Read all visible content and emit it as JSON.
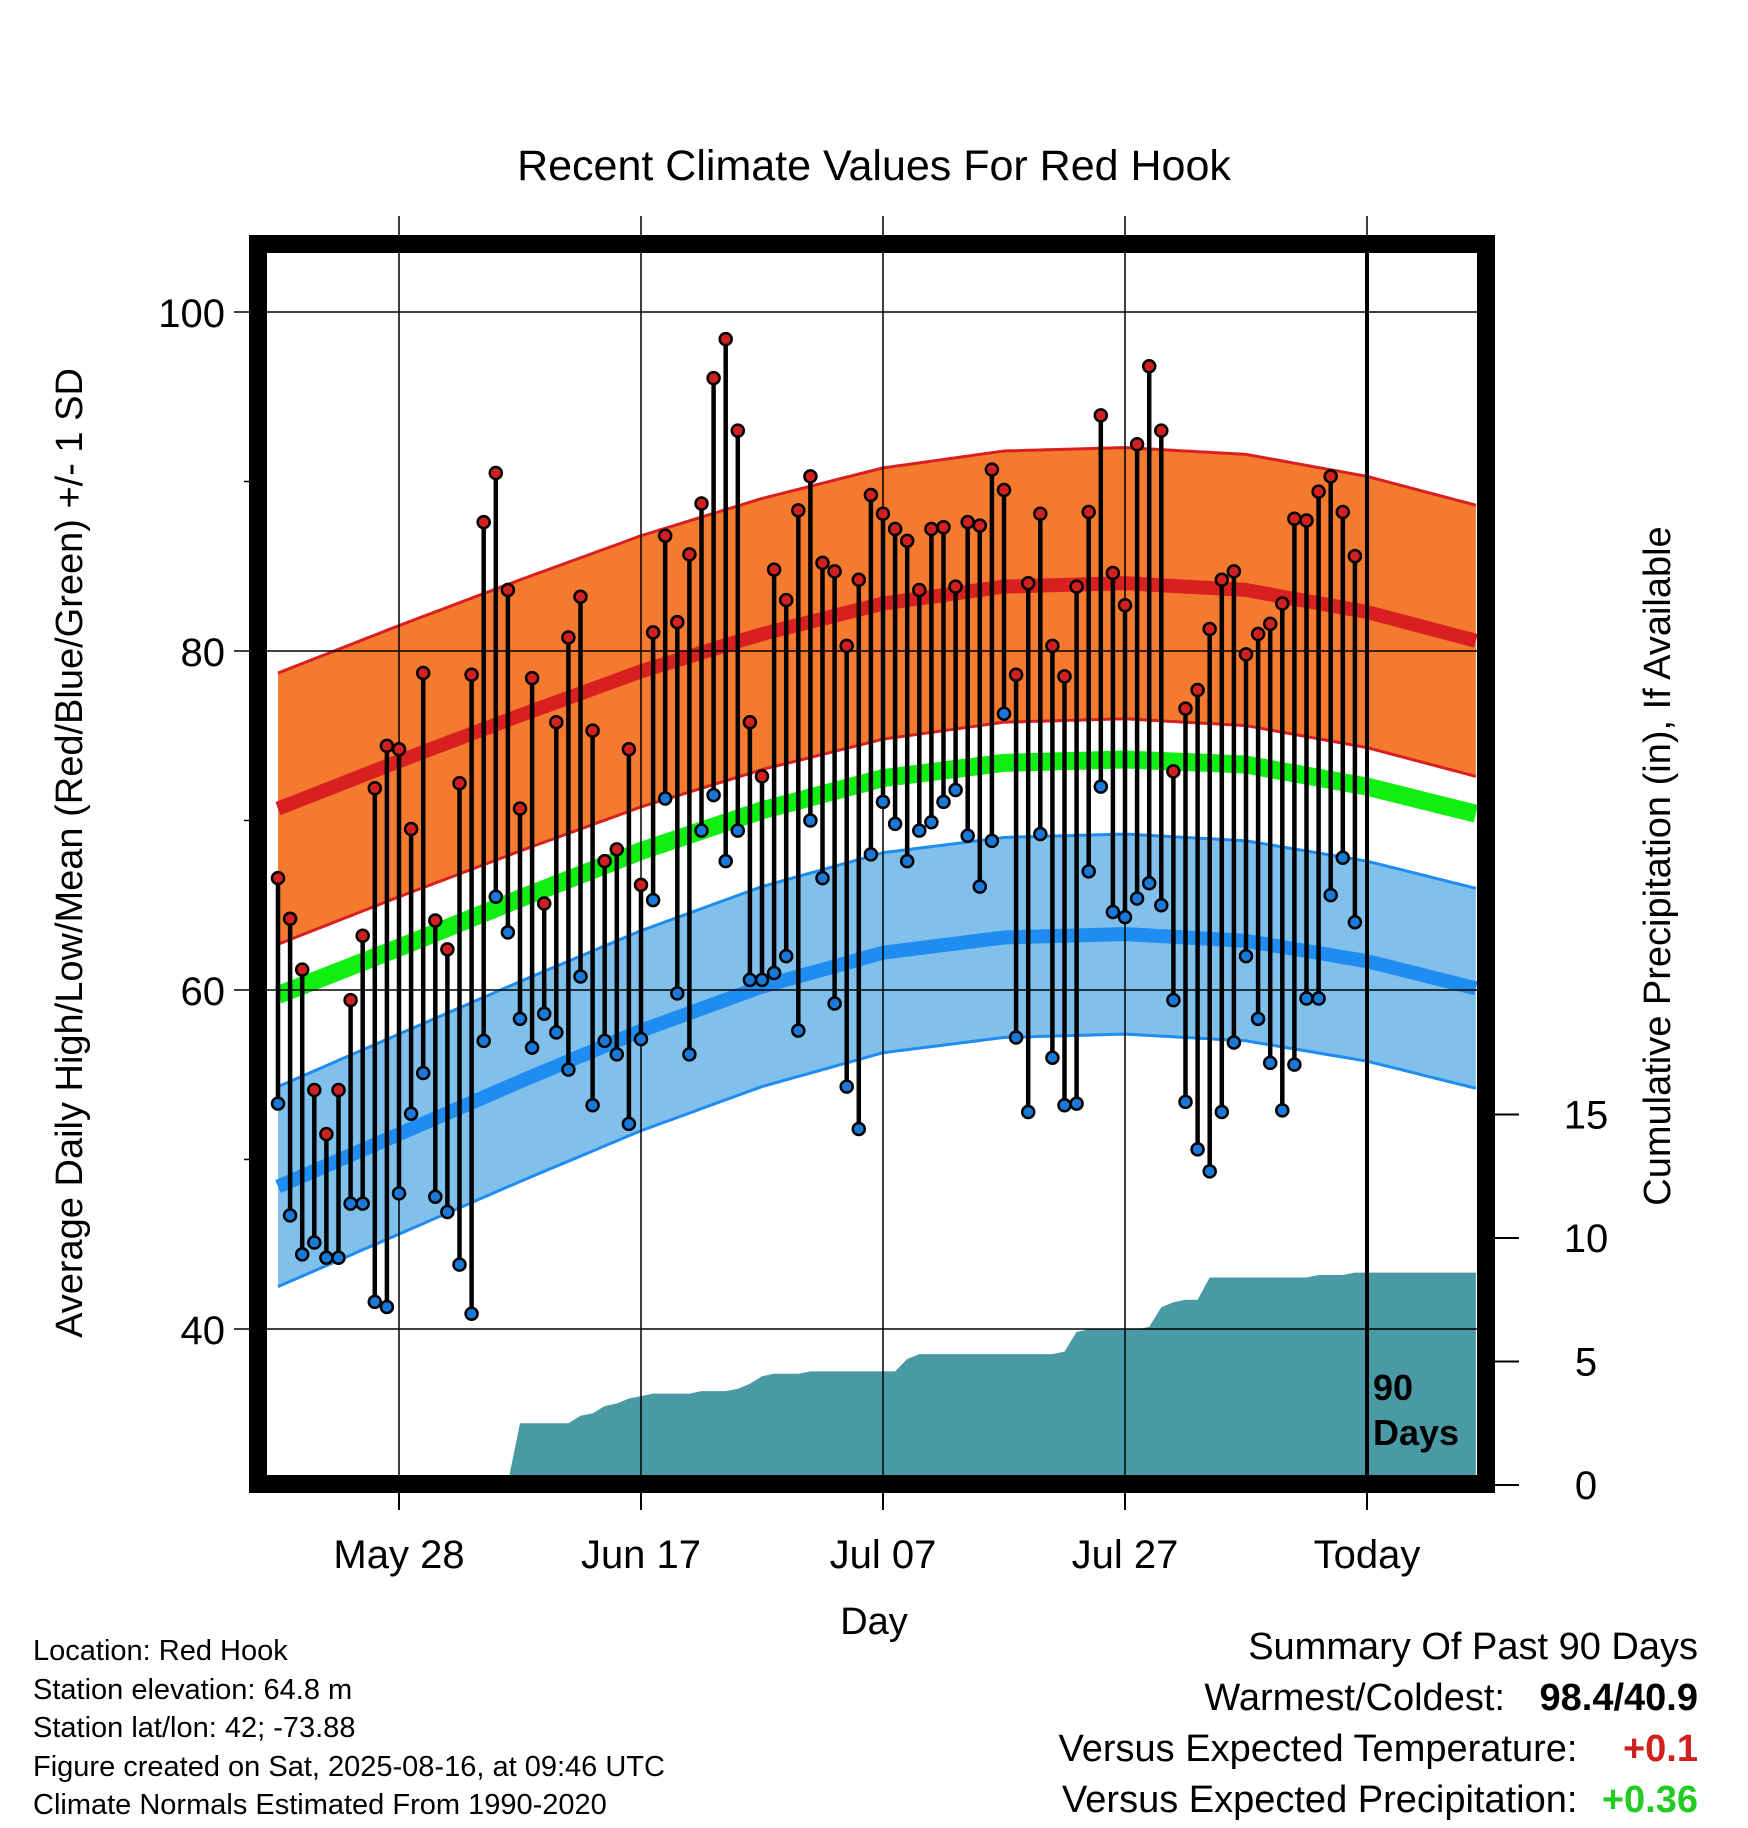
{
  "chart_data": {
    "type": "line",
    "title": "Recent Climate Values For Red Hook",
    "xlabel": "Day",
    "ylabel": "Average Daily High/Low/Mean (Red/Blue/Green) +/- 1 SD",
    "y2label": "Cumulative Precipitation (in), If Available",
    "x_ticks": [
      "May 28",
      "Jun 17",
      "Jul 07",
      "Jul 27",
      "Today"
    ],
    "y_ticks": [
      40,
      60,
      80,
      100
    ],
    "y2_ticks": [
      0,
      5,
      10,
      15
    ],
    "ylim": [
      31.5,
      104
    ],
    "y2lim": [
      0,
      20
    ],
    "xlim": [
      -90,
      9.5
    ],
    "today_marker_label": [
      "90",
      "Days"
    ],
    "highs": [
      66.6,
      64.2,
      61.2,
      54.1,
      51.5,
      54.1,
      59.4,
      63.2,
      71.9,
      74.4,
      74.2,
      69.5,
      78.7,
      64.1,
      62.4,
      72.2,
      78.6,
      87.6,
      90.5,
      83.6,
      70.7,
      78.4,
      65.1,
      75.8,
      80.8,
      83.2,
      75.3,
      67.6,
      68.3,
      74.2,
      66.2,
      81.1,
      86.8,
      81.7,
      85.7,
      88.7,
      96.1,
      98.4,
      93.0,
      75.8,
      72.6,
      84.8,
      83.0,
      88.3,
      90.3,
      85.2,
      84.7,
      80.3,
      84.2,
      89.2,
      88.1,
      87.2,
      86.5,
      83.6,
      87.2,
      87.3,
      83.8,
      87.6,
      87.4,
      90.7,
      89.5,
      78.6,
      84.0,
      88.1,
      80.3,
      78.5,
      83.8,
      88.2,
      93.9,
      84.6,
      82.7,
      92.2,
      96.8,
      93.0,
      72.9,
      76.6,
      77.7,
      81.3,
      84.2,
      84.7,
      79.8,
      81.0,
      81.6,
      82.8,
      87.8,
      87.7,
      89.4,
      90.3,
      88.2,
      85.6
    ],
    "lows": [
      53.3,
      46.7,
      44.4,
      45.1,
      44.2,
      44.2,
      47.4,
      47.4,
      41.6,
      41.3,
      48.0,
      52.7,
      55.1,
      47.8,
      46.9,
      43.8,
      40.9,
      57.0,
      65.5,
      63.4,
      58.3,
      56.6,
      58.6,
      57.5,
      55.3,
      60.8,
      53.2,
      57.0,
      56.2,
      52.1,
      57.1,
      65.3,
      71.3,
      59.8,
      56.2,
      69.4,
      71.5,
      67.6,
      69.4,
      60.6,
      60.6,
      61.0,
      62.0,
      57.6,
      70.0,
      66.6,
      59.2,
      54.3,
      51.8,
      68.0,
      71.1,
      69.8,
      67.6,
      69.4,
      69.9,
      71.1,
      71.8,
      69.1,
      66.1,
      68.8,
      76.3,
      57.2,
      52.8,
      69.2,
      56.0,
      53.2,
      53.3,
      67.0,
      72.0,
      64.6,
      64.3,
      65.4,
      66.3,
      65.0,
      59.4,
      53.4,
      50.6,
      49.3,
      52.8,
      56.9,
      62.0,
      58.3,
      55.7,
      52.9,
      55.6,
      59.5,
      59.5,
      65.6,
      67.8,
      64.0
    ],
    "normal_high": {
      "x": [
        -90,
        -80,
        -70,
        -60,
        -50,
        -40,
        -30,
        -20,
        -10,
        0,
        9
      ],
      "mean": [
        70.7,
        73.5,
        76.2,
        78.8,
        81.0,
        82.8,
        83.8,
        84.0,
        83.6,
        82.3,
        80.6
      ],
      "sd": 8.0
    },
    "normal_low": {
      "x": [
        -90,
        -80,
        -70,
        -60,
        -50,
        -40,
        -30,
        -20,
        -10,
        0,
        9
      ],
      "mean": [
        48.4,
        51.5,
        54.6,
        57.6,
        60.2,
        62.2,
        63.1,
        63.3,
        62.9,
        61.7,
        60.1
      ],
      "sd": 5.9
    },
    "normal_mean": {
      "x": [
        -90,
        -80,
        -70,
        -60,
        -50,
        -40,
        -30,
        -20,
        -10,
        0,
        9
      ],
      "mean": [
        59.7,
        62.5,
        65.4,
        68.2,
        70.6,
        72.5,
        73.4,
        73.6,
        73.3,
        72.0,
        70.4
      ]
    },
    "precip_cumulative": [
      [
        -90,
        0
      ],
      [
        -84,
        0
      ],
      [
        -83,
        0.1
      ],
      [
        -76,
        0.2
      ],
      [
        -70,
        0.2
      ],
      [
        -69,
        2.5
      ],
      [
        -64,
        2.5
      ],
      [
        -63,
        2.9
      ],
      [
        -61,
        3.1
      ],
      [
        -59,
        3.4
      ],
      [
        -57,
        3.6
      ],
      [
        -54,
        3.7
      ],
      [
        -50,
        3.7
      ],
      [
        -49,
        3.9
      ],
      [
        -46,
        3.9
      ],
      [
        -45,
        4.2
      ],
      [
        -44,
        4.5
      ],
      [
        -39,
        4.6
      ],
      [
        -36,
        4.6
      ],
      [
        -25,
        4.6
      ],
      [
        -24,
        5.1
      ],
      [
        -23,
        5.3
      ],
      [
        -18,
        5.3
      ],
      [
        -17,
        5.4
      ],
      [
        -16,
        6.0
      ],
      [
        -14,
        6.2
      ],
      [
        -13,
        6.2
      ],
      [
        -12,
        6.3
      ],
      [
        -6,
        6.3
      ],
      [
        -5,
        6.5
      ],
      [
        -3,
        6.5
      ],
      [
        -2,
        6.5
      ],
      [
        -1,
        6.5
      ],
      [
        0,
        6.5
      ],
      [
        0.9,
        6.5
      ],
      [
        1.1,
        6.5
      ],
      [
        2,
        6.5
      ],
      [
        3,
        6.5
      ],
      [
        4,
        6.5
      ],
      [
        5,
        6.5
      ],
      [
        6,
        6.5
      ],
      [
        7,
        6.5
      ],
      [
        8,
        6.5
      ],
      [
        9,
        6.5
      ]
    ],
    "precip_steps": [
      [
        -90,
        0
      ],
      [
        -84,
        0
      ],
      [
        -83,
        0.05
      ],
      [
        -78,
        0.05
      ],
      [
        -77,
        0.1
      ],
      [
        -71,
        0.1
      ],
      [
        -70,
        2.5
      ],
      [
        -66,
        2.5
      ],
      [
        -65,
        2.8
      ],
      [
        -64,
        2.9
      ],
      [
        -63,
        3.2
      ],
      [
        -62,
        3.3
      ],
      [
        -61,
        3.5
      ],
      [
        -60,
        3.6
      ],
      [
        -59,
        3.7
      ],
      [
        -56,
        3.7
      ],
      [
        -55,
        3.8
      ],
      [
        -53,
        3.8
      ],
      [
        -52,
        3.9
      ],
      [
        -51,
        4.1
      ],
      [
        -50,
        4.4
      ],
      [
        -49,
        4.5
      ],
      [
        -47,
        4.5
      ],
      [
        -46,
        4.6
      ],
      [
        -43,
        4.6
      ],
      [
        -39,
        4.6
      ],
      [
        -38,
        4.6
      ],
      [
        -37,
        5.1
      ],
      [
        -36,
        5.3
      ],
      [
        -33,
        5.3
      ],
      [
        -28,
        5.3
      ],
      [
        -27,
        5.6
      ],
      [
        -26,
        6.5
      ],
      [
        -25,
        6.6
      ],
      [
        -19,
        6.6
      ],
      [
        -18,
        6.7
      ],
      [
        -17,
        7.2
      ],
      [
        -16,
        7.3
      ],
      [
        -15,
        7.5
      ],
      [
        -14,
        7.5
      ],
      [
        -13,
        8.4
      ],
      [
        -6,
        8.4
      ],
      [
        -5,
        8.4
      ],
      [
        -4,
        8.5
      ],
      [
        -1,
        8.5
      ],
      [
        0,
        8.6
      ]
    ]
  },
  "precip_series": [
    [
      -90,
      0
    ],
    [
      -84,
      0
    ],
    [
      -83,
      0.05
    ],
    [
      -78,
      0.05
    ],
    [
      -77,
      0.1
    ],
    [
      -71,
      0.1
    ],
    [
      -70,
      2.5
    ],
    [
      -66,
      2.5
    ],
    [
      -65,
      2.8
    ],
    [
      -64,
      2.9
    ],
    [
      -63,
      3.2
    ],
    [
      -62,
      3.3
    ],
    [
      -61,
      3.5
    ],
    [
      -60,
      3.6
    ],
    [
      -59,
      3.7
    ],
    [
      -56,
      3.7
    ],
    [
      -55,
      3.8
    ],
    [
      -53,
      3.8
    ],
    [
      -52,
      3.9
    ],
    [
      -51,
      4.1
    ],
    [
      -50,
      4.4
    ],
    [
      -49,
      4.5
    ],
    [
      -47,
      4.5
    ],
    [
      -46,
      4.6
    ],
    [
      -39,
      4.6
    ],
    [
      -38,
      5.1
    ],
    [
      -37,
      5.3
    ],
    [
      -36,
      5.3
    ],
    [
      -35,
      5.3
    ],
    [
      -26,
      5.3
    ],
    [
      -25,
      5.4
    ],
    [
      -24,
      6.2
    ],
    [
      -23,
      6.3
    ],
    [
      -19,
      6.3
    ],
    [
      -18,
      6.4
    ],
    [
      -17,
      7.2
    ],
    [
      -16,
      7.4
    ],
    [
      -15,
      7.5
    ],
    [
      -14,
      7.5
    ],
    [
      -13,
      8.4
    ],
    [
      -6,
      8.4
    ],
    [
      -5,
      8.4
    ],
    [
      -4,
      8.5
    ],
    [
      -2,
      8.5
    ],
    [
      -1,
      8.6
    ],
    [
      0,
      8.6
    ]
  ],
  "precip_plot": [
    [
      -90,
      0
    ],
    [
      -84,
      0
    ],
    [
      -83,
      0.05
    ],
    [
      -78,
      0.05
    ],
    [
      -77,
      0.1
    ],
    [
      -71,
      0.1
    ],
    [
      -70,
      2.5
    ],
    [
      -66,
      2.5
    ],
    [
      -65,
      2.8
    ],
    [
      -64,
      2.9
    ],
    [
      -63,
      3.2
    ],
    [
      -62,
      3.3
    ],
    [
      -61,
      3.5
    ],
    [
      -60,
      3.6
    ],
    [
      -59,
      3.7
    ],
    [
      -56,
      3.7
    ],
    [
      -55,
      3.8
    ],
    [
      -53,
      3.8
    ],
    [
      -52,
      3.9
    ],
    [
      -51,
      4.1
    ],
    [
      -50,
      4.4
    ],
    [
      -49,
      4.5
    ],
    [
      -47,
      4.5
    ],
    [
      -46,
      4.6
    ],
    [
      -39,
      4.6
    ],
    [
      -38,
      5.1
    ],
    [
      -37,
      5.3
    ],
    [
      -36,
      5.3
    ],
    [
      -26,
      5.3
    ],
    [
      -25,
      5.4
    ],
    [
      -24,
      6.2
    ],
    [
      -23,
      6.3
    ],
    [
      -19,
      6.3
    ],
    [
      -18,
      6.4
    ],
    [
      -17,
      7.2
    ],
    [
      -16,
      7.4
    ],
    [
      -15,
      7.5
    ],
    [
      -14,
      7.5
    ],
    [
      -13,
      8.4
    ],
    [
      -6,
      8.4
    ],
    [
      -5,
      8.4
    ],
    [
      -4,
      8.5
    ],
    [
      -2,
      8.5
    ],
    [
      -1,
      8.6
    ],
    [
      0,
      8.6
    ]
  ],
  "info": {
    "location": "Location: Red Hook",
    "elevation": "Station elevation: 64.8 m",
    "latlon": "Station lat/lon: 42; -73.88",
    "created": "Figure created on Sat, 2025-08-16, at 09:46 UTC",
    "normals": "Climate Normals Estimated From 1990-2020"
  },
  "summary": {
    "title": "Summary Of Past 90 Days",
    "warm_cold_label": "Warmest/Coldest:",
    "warm_cold_value": "98.4/40.9",
    "temp_label": "Versus Expected Temperature:",
    "temp_value": "+0.1",
    "precip_label": "Versus Expected Precipitation:",
    "precip_value": "+0.36",
    "colors": {
      "temp": "#d02020",
      "precip": "#22cc22"
    }
  },
  "colors": {
    "high_band": "#f47a30",
    "high_line": "#d92020",
    "high_edge": "#d92020",
    "low_band": "#80c0ea",
    "low_line": "#1e8cf0",
    "low_edge": "#1e8cf0",
    "mean_line": "#11ee11",
    "precip_fill": "#4a9aa5",
    "high_dot": "#d02020",
    "low_dot": "#1a78d8"
  }
}
